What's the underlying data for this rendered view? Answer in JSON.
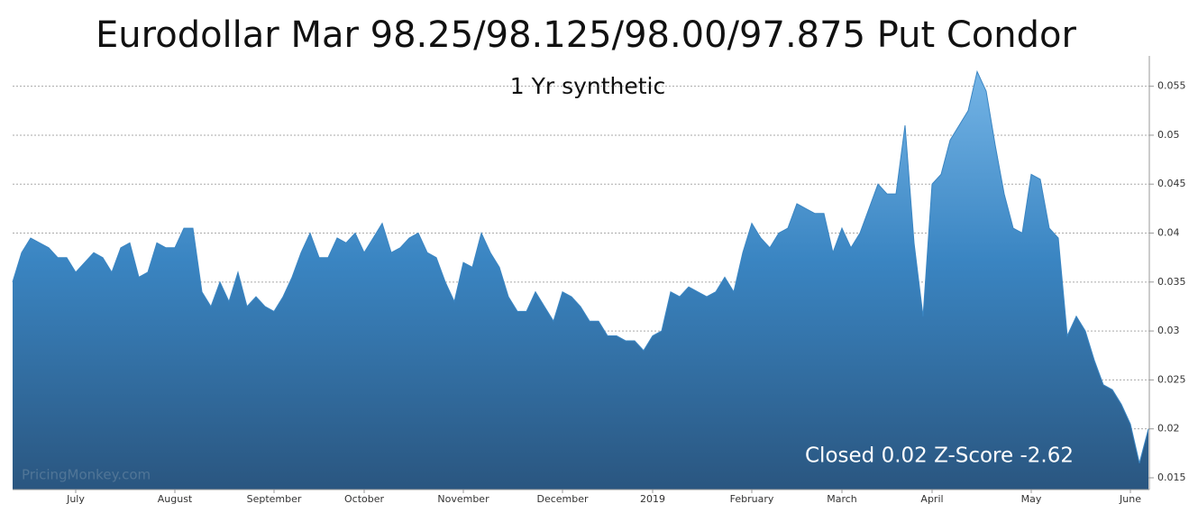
{
  "chart_data": {
    "type": "area",
    "title": "Eurodollar Mar 98.25/98.125/98.00/97.875 Put Condor",
    "subtitle": "1 Yr synthetic",
    "annotation": "Closed 0.02 Z-Score -2.62",
    "watermark": "PricingMonkey.com",
    "color": "#3a85c2",
    "categories": [
      null,
      null,
      null,
      null,
      null,
      null,
      null,
      "July",
      null,
      null,
      null,
      null,
      null,
      null,
      null,
      null,
      null,
      null,
      "August",
      null,
      null,
      null,
      null,
      null,
      null,
      null,
      null,
      null,
      null,
      "September",
      null,
      null,
      null,
      null,
      null,
      null,
      null,
      null,
      null,
      "October",
      null,
      null,
      null,
      null,
      null,
      null,
      null,
      null,
      null,
      null,
      "November",
      null,
      null,
      null,
      null,
      null,
      null,
      null,
      null,
      null,
      null,
      "December",
      null,
      null,
      null,
      null,
      null,
      null,
      null,
      null,
      null,
      "2019",
      null,
      null,
      null,
      null,
      null,
      null,
      null,
      null,
      null,
      null,
      "February",
      null,
      null,
      null,
      null,
      null,
      null,
      null,
      null,
      null,
      "March",
      null,
      null,
      null,
      null,
      null,
      null,
      null,
      null,
      null,
      "April",
      null,
      null,
      null,
      null,
      null,
      null,
      null,
      null,
      null,
      null,
      "May",
      null,
      null,
      null,
      null,
      null,
      null,
      null,
      null,
      null,
      null,
      "June",
      null,
      null
    ],
    "values": [
      0.035,
      0.038,
      0.0395,
      0.039,
      0.0385,
      0.0375,
      0.0375,
      0.036,
      0.037,
      0.038,
      0.0375,
      0.036,
      0.0385,
      0.039,
      0.0355,
      0.036,
      0.039,
      0.0385,
      0.0385,
      0.0405,
      0.0405,
      0.034,
      0.0325,
      0.035,
      0.033,
      0.036,
      0.0325,
      0.0335,
      0.0325,
      0.032,
      0.0335,
      0.0355,
      0.038,
      0.04,
      0.0375,
      0.0375,
      0.0395,
      0.039,
      0.04,
      0.038,
      0.0395,
      0.041,
      0.038,
      0.0385,
      0.0395,
      0.04,
      0.038,
      0.0375,
      0.035,
      0.033,
      0.037,
      0.0365,
      0.04,
      0.038,
      0.0365,
      0.0335,
      0.032,
      0.032,
      0.034,
      0.0325,
      0.031,
      0.034,
      0.0335,
      0.0325,
      0.031,
      0.031,
      0.0295,
      0.0295,
      0.029,
      0.029,
      0.028,
      0.0295,
      0.03,
      0.034,
      0.0335,
      0.0345,
      0.034,
      0.0335,
      0.034,
      0.0355,
      0.034,
      0.038,
      0.041,
      0.0395,
      0.0385,
      0.04,
      0.0405,
      0.043,
      0.0425,
      0.042,
      0.042,
      0.038,
      0.0405,
      0.0385,
      0.04,
      0.0425,
      0.045,
      0.044,
      0.044,
      0.051,
      0.039,
      0.0315,
      0.045,
      0.046,
      0.0495,
      0.051,
      0.0525,
      0.0565,
      0.0545,
      0.049,
      0.044,
      0.0405,
      0.04,
      0.046,
      0.0455,
      0.0405,
      0.0395,
      0.0295,
      0.0315,
      0.03,
      0.027,
      0.0245,
      0.024,
      0.0225,
      0.0205,
      0.0165,
      0.02
    ],
    "ylim": [
      0.0138,
      0.0581
    ],
    "yticks": [
      0.015,
      0.02,
      0.025,
      0.03,
      0.035,
      0.04,
      0.045,
      0.05,
      0.055
    ],
    "grid": true
  }
}
